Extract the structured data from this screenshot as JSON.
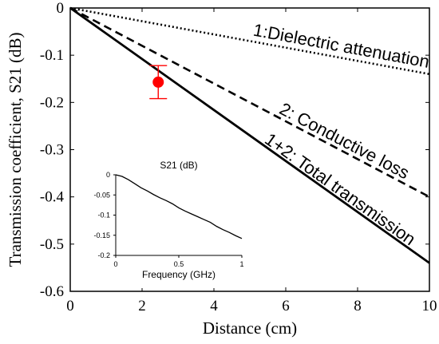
{
  "chart_data": [
    {
      "type": "line",
      "title": "",
      "xlabel": "Distance (cm)",
      "ylabel": "Transmission coefficient, S21 (dB)",
      "xlim": [
        0,
        10
      ],
      "ylim": [
        -0.6,
        0
      ],
      "xticks": [
        0,
        2,
        4,
        6,
        8,
        10
      ],
      "yticks": [
        0,
        -0.1,
        -0.2,
        -0.3,
        -0.4,
        -0.5,
        -0.6
      ],
      "xtick_labels": [
        "0",
        "2",
        "4",
        "6",
        "8",
        "10"
      ],
      "ytick_labels": [
        "0",
        "-0.1",
        "-0.2",
        "-0.3",
        "-0.4",
        "-0.5",
        "-0.6"
      ],
      "grid": false,
      "legend": "none",
      "series": [
        {
          "name": "1:Dielectric attenuation",
          "style": "dotted",
          "color": "#000000",
          "x": [
            0,
            10
          ],
          "y": [
            0,
            -0.14
          ]
        },
        {
          "name": "2: Conductive loss",
          "style": "dashed",
          "color": "#000000",
          "x": [
            0,
            10
          ],
          "y": [
            0,
            -0.4
          ]
        },
        {
          "name": "1+2: Total transmission",
          "style": "solid",
          "color": "#000000",
          "x": [
            0,
            10
          ],
          "y": [
            0,
            -0.54
          ]
        }
      ],
      "measurement": {
        "color": "#ff0000",
        "x": 2.45,
        "y": -0.157,
        "error_low": -0.192,
        "error_high": -0.122
      }
    },
    {
      "type": "line",
      "title": "S21 (dB)",
      "xlabel": "Frequency (GHz)",
      "ylabel": "",
      "xlim": [
        0,
        1
      ],
      "ylim": [
        -0.2,
        0
      ],
      "xticks": [
        0,
        0.5,
        1
      ],
      "yticks": [
        0,
        -0.05,
        -0.1,
        -0.15,
        -0.2
      ],
      "xtick_labels": [
        "0",
        "0.5",
        "1"
      ],
      "ytick_labels": [
        "0",
        "-0.05",
        "-0.1",
        "-0.15",
        "-0.2"
      ],
      "grid": false,
      "legend": "none",
      "series": [
        {
          "color": "#000000",
          "x": [
            0,
            0.05,
            0.1,
            0.15,
            0.2,
            0.25,
            0.3,
            0.35,
            0.4,
            0.45,
            0.5,
            0.55,
            0.6,
            0.65,
            0.7,
            0.75,
            0.8,
            0.85,
            0.9,
            0.95,
            1.0
          ],
          "y": [
            0,
            -0.004,
            -0.012,
            -0.022,
            -0.032,
            -0.04,
            -0.049,
            -0.057,
            -0.064,
            -0.072,
            -0.082,
            -0.09,
            -0.097,
            -0.104,
            -0.111,
            -0.118,
            -0.128,
            -0.136,
            -0.143,
            -0.151,
            -0.158
          ]
        }
      ]
    }
  ]
}
